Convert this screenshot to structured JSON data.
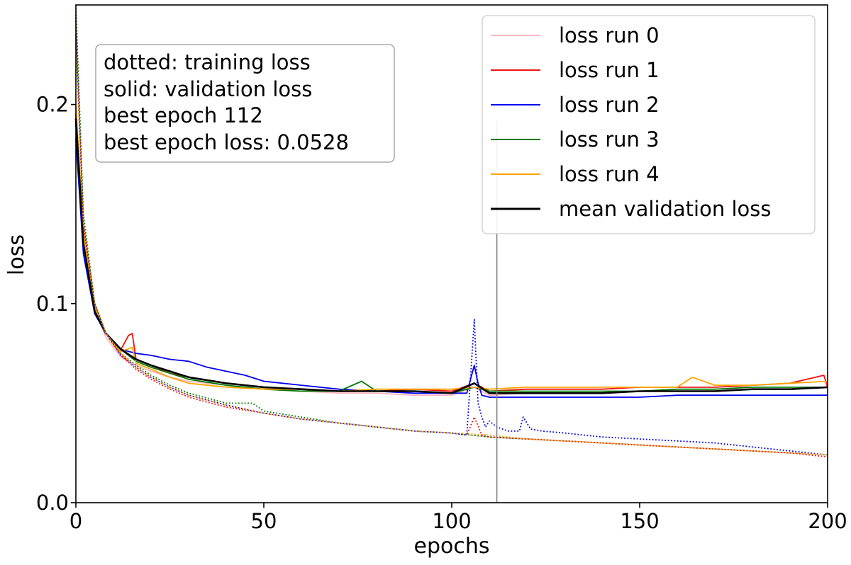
{
  "chart_data": {
    "type": "line",
    "title": "",
    "xlabel": "epochs",
    "ylabel": "loss",
    "xlim": [
      0,
      200
    ],
    "ylim": [
      0,
      0.25
    ],
    "xticks": [
      0,
      50,
      100,
      150,
      200
    ],
    "xtick_labels": [
      "0",
      "50",
      "100",
      "150",
      "200"
    ],
    "yticks": [
      0.0,
      0.1,
      0.2
    ],
    "ytick_labels": [
      "0.0",
      "0.1",
      "0.2"
    ],
    "grid": false,
    "legend_position": "top-right",
    "best_epoch_marker": 112,
    "annotation": {
      "lines": [
        "dotted: training loss",
        "solid: validation loss",
        "best epoch 112",
        "best epoch loss: 0.0528"
      ]
    },
    "legend": [
      {
        "label": "loss run 0",
        "color": "#ffb6c1"
      },
      {
        "label": "loss run 1",
        "color": "#ee1111"
      },
      {
        "label": "loss run 2",
        "color": "#0000ee"
      },
      {
        "label": "loss run 3",
        "color": "#007a00"
      },
      {
        "label": "loss run 4",
        "color": "#ffa500"
      },
      {
        "label": "mean validation loss",
        "color": "#000000"
      }
    ],
    "series": [
      {
        "name": "loss run 0",
        "style": "solid",
        "color": "#ffb6c1",
        "x": [
          0,
          2,
          5,
          8,
          12,
          16,
          20,
          25,
          30,
          40,
          50,
          60,
          70,
          80,
          90,
          100,
          106,
          110,
          120,
          130,
          140,
          150,
          160,
          170,
          180,
          190,
          200
        ],
        "y": [
          0.195,
          0.13,
          0.097,
          0.083,
          0.073,
          0.069,
          0.066,
          0.063,
          0.061,
          0.059,
          0.057,
          0.056,
          0.055,
          0.055,
          0.054,
          0.054,
          0.058,
          0.054,
          0.055,
          0.055,
          0.055,
          0.056,
          0.056,
          0.056,
          0.057,
          0.057,
          0.058
        ]
      },
      {
        "name": "loss run 1",
        "style": "solid",
        "color": "#ee1111",
        "x": [
          0,
          2,
          5,
          8,
          12,
          14,
          15,
          16,
          20,
          25,
          30,
          40,
          50,
          60,
          70,
          80,
          90,
          100,
          106,
          110,
          120,
          130,
          140,
          150,
          160,
          170,
          180,
          190,
          199,
          200
        ],
        "y": [
          0.195,
          0.13,
          0.097,
          0.085,
          0.077,
          0.084,
          0.085,
          0.072,
          0.069,
          0.065,
          0.063,
          0.06,
          0.058,
          0.057,
          0.056,
          0.056,
          0.057,
          0.056,
          0.06,
          0.056,
          0.057,
          0.057,
          0.057,
          0.058,
          0.058,
          0.058,
          0.059,
          0.06,
          0.064,
          0.058
        ]
      },
      {
        "name": "loss run 2",
        "style": "solid",
        "color": "#0000ee",
        "x": [
          0,
          2,
          5,
          8,
          12,
          16,
          20,
          25,
          30,
          35,
          40,
          45,
          50,
          60,
          70,
          80,
          90,
          100,
          104,
          106,
          107,
          108,
          110,
          120,
          130,
          140,
          150,
          160,
          170,
          180,
          190,
          200
        ],
        "y": [
          0.183,
          0.125,
          0.095,
          0.085,
          0.077,
          0.075,
          0.074,
          0.072,
          0.071,
          0.068,
          0.066,
          0.064,
          0.061,
          0.059,
          0.057,
          0.056,
          0.055,
          0.055,
          0.055,
          0.069,
          0.06,
          0.054,
          0.053,
          0.053,
          0.053,
          0.053,
          0.053,
          0.054,
          0.054,
          0.054,
          0.054,
          0.054
        ]
      },
      {
        "name": "loss run 3",
        "style": "solid",
        "color": "#007a00",
        "x": [
          0,
          2,
          5,
          8,
          12,
          16,
          20,
          25,
          30,
          40,
          50,
          60,
          70,
          76,
          80,
          90,
          100,
          106,
          110,
          120,
          130,
          140,
          150,
          160,
          170,
          180,
          190,
          200
        ],
        "y": [
          0.19,
          0.13,
          0.097,
          0.085,
          0.077,
          0.071,
          0.068,
          0.065,
          0.062,
          0.059,
          0.057,
          0.056,
          0.056,
          0.061,
          0.056,
          0.056,
          0.055,
          0.058,
          0.056,
          0.056,
          0.056,
          0.056,
          0.056,
          0.057,
          0.057,
          0.058,
          0.058,
          0.058
        ]
      },
      {
        "name": "loss run 4",
        "style": "solid",
        "color": "#ffa500",
        "x": [
          0,
          2,
          5,
          8,
          12,
          15,
          16,
          20,
          25,
          30,
          40,
          50,
          60,
          70,
          80,
          90,
          100,
          106,
          110,
          120,
          130,
          140,
          150,
          160,
          164,
          170,
          180,
          190,
          200
        ],
        "y": [
          0.2,
          0.135,
          0.098,
          0.085,
          0.076,
          0.078,
          0.07,
          0.067,
          0.063,
          0.06,
          0.058,
          0.057,
          0.057,
          0.056,
          0.057,
          0.057,
          0.057,
          0.058,
          0.057,
          0.058,
          0.058,
          0.058,
          0.058,
          0.058,
          0.063,
          0.059,
          0.059,
          0.06,
          0.061
        ]
      },
      {
        "name": "mean validation loss",
        "style": "solid",
        "color": "#000000",
        "x": [
          0,
          2,
          5,
          8,
          12,
          16,
          20,
          25,
          30,
          40,
          50,
          60,
          70,
          80,
          90,
          100,
          106,
          110,
          120,
          130,
          140,
          150,
          160,
          170,
          180,
          190,
          200
        ],
        "y": [
          0.193,
          0.13,
          0.096,
          0.085,
          0.077,
          0.072,
          0.069,
          0.066,
          0.063,
          0.06,
          0.058,
          0.057,
          0.056,
          0.056,
          0.056,
          0.055,
          0.06,
          0.055,
          0.055,
          0.055,
          0.055,
          0.056,
          0.056,
          0.056,
          0.057,
          0.057,
          0.058
        ]
      },
      {
        "name": "train run 0",
        "style": "dotted",
        "color": "#ffb6c1",
        "x": [
          0,
          2,
          5,
          8,
          12,
          16,
          20,
          25,
          30,
          40,
          50,
          60,
          70,
          80,
          90,
          100,
          110,
          120,
          130,
          140,
          150,
          160,
          170,
          180,
          190,
          200
        ],
        "y": [
          0.24,
          0.14,
          0.1,
          0.085,
          0.075,
          0.068,
          0.063,
          0.058,
          0.054,
          0.049,
          0.045,
          0.042,
          0.04,
          0.038,
          0.036,
          0.035,
          0.033,
          0.032,
          0.031,
          0.03,
          0.029,
          0.028,
          0.027,
          0.026,
          0.025,
          0.024
        ]
      },
      {
        "name": "train run 1",
        "style": "dotted",
        "color": "#ee1111",
        "x": [
          0,
          2,
          5,
          8,
          12,
          16,
          20,
          25,
          30,
          40,
          50,
          60,
          70,
          80,
          90,
          100,
          104,
          106,
          108,
          110,
          120,
          130,
          140,
          150,
          160,
          170,
          180,
          190,
          200
        ],
        "y": [
          0.245,
          0.14,
          0.1,
          0.085,
          0.074,
          0.067,
          0.062,
          0.057,
          0.053,
          0.048,
          0.045,
          0.042,
          0.04,
          0.038,
          0.036,
          0.035,
          0.034,
          0.043,
          0.034,
          0.033,
          0.032,
          0.031,
          0.03,
          0.029,
          0.028,
          0.027,
          0.026,
          0.025,
          0.023
        ]
      },
      {
        "name": "train run 2",
        "style": "dotted",
        "color": "#0000ee",
        "x": [
          0,
          2,
          5,
          8,
          12,
          16,
          20,
          25,
          30,
          40,
          50,
          60,
          70,
          80,
          90,
          100,
          104,
          106,
          107,
          108,
          109,
          110,
          112,
          115,
          118,
          119,
          120,
          121,
          124,
          130,
          140,
          150,
          160,
          170,
          180,
          190,
          200
        ],
        "y": [
          0.235,
          0.14,
          0.1,
          0.085,
          0.074,
          0.068,
          0.063,
          0.058,
          0.054,
          0.049,
          0.045,
          0.042,
          0.04,
          0.038,
          0.036,
          0.035,
          0.034,
          0.092,
          0.05,
          0.043,
          0.038,
          0.041,
          0.038,
          0.036,
          0.036,
          0.043,
          0.04,
          0.037,
          0.036,
          0.035,
          0.033,
          0.032,
          0.031,
          0.03,
          0.028,
          0.026,
          0.024
        ]
      },
      {
        "name": "train run 3",
        "style": "dotted",
        "color": "#007a00",
        "x": [
          0,
          2,
          5,
          8,
          12,
          16,
          20,
          25,
          30,
          40,
          47,
          50,
          60,
          70,
          80,
          90,
          100,
          110,
          120,
          130,
          140,
          150,
          160,
          170,
          180,
          190,
          200
        ],
        "y": [
          0.25,
          0.145,
          0.1,
          0.085,
          0.075,
          0.069,
          0.064,
          0.059,
          0.055,
          0.05,
          0.05,
          0.046,
          0.043,
          0.04,
          0.038,
          0.036,
          0.035,
          0.033,
          0.032,
          0.031,
          0.03,
          0.029,
          0.028,
          0.027,
          0.026,
          0.025,
          0.024
        ]
      },
      {
        "name": "train run 4",
        "style": "dotted",
        "color": "#ffa500",
        "x": [
          0,
          2,
          5,
          8,
          12,
          16,
          20,
          25,
          30,
          40,
          50,
          60,
          70,
          80,
          90,
          100,
          110,
          120,
          130,
          140,
          150,
          160,
          170,
          180,
          190,
          200
        ],
        "y": [
          0.23,
          0.14,
          0.1,
          0.085,
          0.075,
          0.068,
          0.063,
          0.058,
          0.054,
          0.049,
          0.045,
          0.042,
          0.04,
          0.038,
          0.036,
          0.035,
          0.034,
          0.032,
          0.031,
          0.03,
          0.029,
          0.028,
          0.027,
          0.026,
          0.025,
          0.024
        ]
      }
    ]
  }
}
